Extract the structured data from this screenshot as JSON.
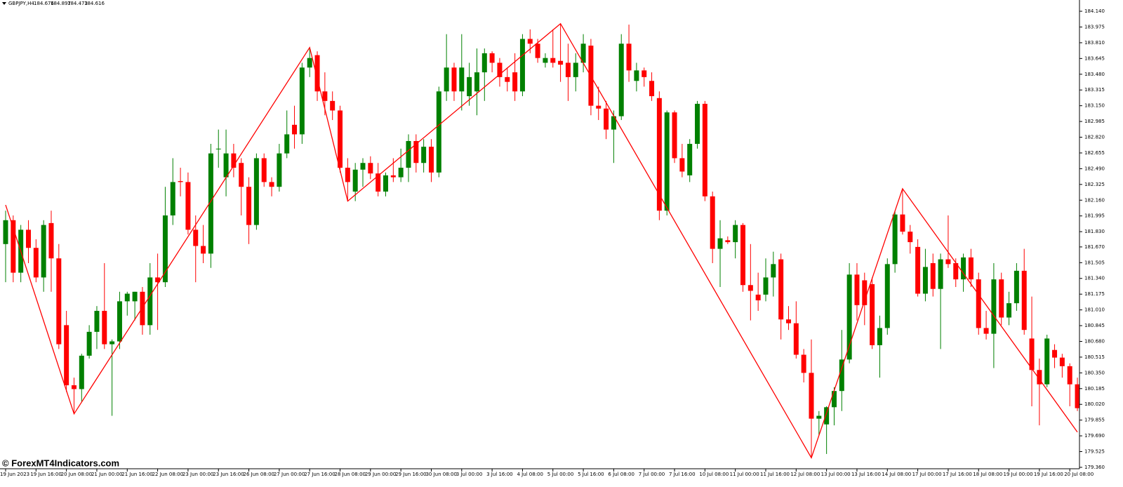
{
  "chart_data": {
    "type": "candlestick",
    "symbol": "GBPJPY,H4",
    "header_values": [
      184.676,
      184.897,
      184.473,
      184.616
    ],
    "watermark": "© ForexMT4Indicators.com",
    "up_color": "#008000",
    "down_color": "#ff0000",
    "categories": [
      "19 Jun 2023",
      null,
      null,
      null,
      "19 Jun 16:00",
      null,
      null,
      null,
      "20 Jun 08:00",
      null,
      null,
      null,
      "21 Jun 00:00",
      null,
      null,
      null,
      "21 Jun 16:00",
      null,
      null,
      null,
      "22 Jun 08:00",
      null,
      null,
      null,
      "23 Jun 00:00",
      null,
      null,
      null,
      "23 Jun 16:00",
      null,
      null,
      null,
      "26 Jun 08:00",
      null,
      null,
      null,
      "27 Jun 00:00",
      null,
      null,
      null,
      "27 Jun 16:00",
      null,
      null,
      null,
      "28 Jun 08:00",
      null,
      null,
      null,
      "29 Jun 00:00",
      null,
      null,
      null,
      "29 Jun 16:00",
      null,
      null,
      null,
      "30 Jun 08:00",
      null,
      null,
      null,
      "3 Jul 00:00",
      null,
      null,
      null,
      "3 Jul 16:00",
      null,
      null,
      null,
      "4 Jul 08:00",
      null,
      null,
      null,
      "5 Jul 00:00",
      null,
      null,
      null,
      "5 Jul 16:00",
      null,
      null,
      null,
      "6 Jul 08:00",
      null,
      null,
      null,
      "7 Jul 00:00",
      null,
      null,
      null,
      "7 Jul 16:00",
      null,
      null,
      null,
      "10 Jul 08:00",
      null,
      null,
      null,
      "11 Jul 00:00",
      null,
      null,
      null,
      "11 Jul 16:00",
      null,
      null,
      null,
      "12 Jul 08:00",
      null,
      null,
      null,
      "13 Jul 00:00",
      null,
      null,
      null,
      "13 Jul 16:00",
      null,
      null,
      null,
      "14 Jul 08:00",
      null,
      null,
      null,
      "17 Jul 00:00",
      null,
      null,
      null,
      "17 Jul 16:00",
      null,
      null,
      null,
      "18 Jul 08:00",
      null,
      null,
      null,
      "19 Jul 00:00",
      null,
      null,
      null,
      "19 Jul 16:00",
      null,
      null,
      null,
      "20 Jul 08:00",
      null
    ],
    "open": [
      181.7,
      181.95,
      181.4,
      181.85,
      181.66,
      181.35,
      181.92,
      181.55,
      180.85,
      180.22,
      180.18,
      180.53,
      180.78,
      181.0,
      180.65,
      180.68,
      181.1,
      181.1,
      181.2,
      180.85,
      181.35,
      181.3,
      182.0,
      182.36,
      182.35,
      181.85,
      181.68,
      181.6,
      182.7,
      182.4,
      182.65,
      182.55,
      182.3,
      181.9,
      182.6,
      182.35,
      182.3,
      182.65,
      182.95,
      182.85,
      183.55,
      183.68,
      183.3,
      183.2,
      183.1,
      182.5,
      182.25,
      182.48,
      182.55,
      182.44,
      182.25,
      182.42,
      182.4,
      182.5,
      182.78,
      182.55,
      182.72,
      182.45,
      183.3,
      183.55,
      183.3,
      183.25,
      183.3,
      183.5,
      183.7,
      183.6,
      183.45,
      183.5,
      183.3,
      183.85,
      183.8,
      183.6,
      183.65,
      183.62,
      183.6,
      183.45,
      183.6,
      183.78,
      183.15,
      183.12,
      182.9,
      183.04,
      183.8,
      183.41,
      183.52,
      183.41,
      183.23,
      182.05,
      183.08,
      182.6,
      182.42,
      182.75,
      183.17,
      182.2,
      181.65,
      181.74,
      181.72,
      181.9,
      181.27,
      181.17,
      181.17,
      181.35,
      181.54,
      180.91,
      180.87,
      180.54,
      180.35,
      179.87,
      179.81,
      179.99,
      180.16,
      180.49,
      181.38,
      181.32,
      181.28,
      180.64,
      180.82,
      181.49,
      182.01,
      181.83,
      181.67,
      181.18,
      181.5,
      181.23,
      181.54,
      181.5,
      181.33,
      181.56,
      181.33,
      180.82,
      180.76,
      181.33,
      180.93,
      181.08,
      181.42,
      180.71,
      180.38,
      180.23,
      180.59,
      180.51,
      180.42,
      180.23
    ],
    "high": [
      182.05,
      182.0,
      181.9,
      181.95,
      181.75,
      181.95,
      182.05,
      181.7,
      181.0,
      180.3,
      180.55,
      180.85,
      181.05,
      181.5,
      180.7,
      181.2,
      181.2,
      181.2,
      181.25,
      181.5,
      181.6,
      182.3,
      182.6,
      182.5,
      182.45,
      182.0,
      181.9,
      182.75,
      182.9,
      182.9,
      182.75,
      182.6,
      182.4,
      182.65,
      182.65,
      182.4,
      182.75,
      183.1,
      183.15,
      183.6,
      183.76,
      183.72,
      183.5,
      183.3,
      183.15,
      182.6,
      182.55,
      182.6,
      182.62,
      182.55,
      182.45,
      182.6,
      182.7,
      182.85,
      182.85,
      182.8,
      182.8,
      183.35,
      183.9,
      183.6,
      183.9,
      183.6,
      183.75,
      183.75,
      183.72,
      183.65,
      183.55,
      183.7,
      183.9,
      183.95,
      183.85,
      183.7,
      183.95,
      184.01,
      183.8,
      183.7,
      183.9,
      183.85,
      183.35,
      183.2,
      183.1,
      183.9,
      184.0,
      183.6,
      183.55,
      183.5,
      183.3,
      183.1,
      183.1,
      182.75,
      182.8,
      183.2,
      183.2,
      182.25,
      181.95,
      181.78,
      181.95,
      181.92,
      181.7,
      181.4,
      181.55,
      181.62,
      181.6,
      181.05,
      181.1,
      180.6,
      180.7,
      179.95,
      180.0,
      180.2,
      180.8,
      181.5,
      181.5,
      181.4,
      181.35,
      180.95,
      181.55,
      182.05,
      182.28,
      181.9,
      181.75,
      181.65,
      181.6,
      181.6,
      182.0,
      181.55,
      181.6,
      181.65,
      181.4,
      181.0,
      181.5,
      181.4,
      181.2,
      181.5,
      181.65,
      181.15,
      180.5,
      180.75,
      180.65,
      180.55,
      180.45,
      180.3
    ],
    "low": [
      181.3,
      181.3,
      181.3,
      181.5,
      181.3,
      181.2,
      181.2,
      180.6,
      180.15,
      179.92,
      180.05,
      180.5,
      180.6,
      180.6,
      179.9,
      180.6,
      180.95,
      180.9,
      180.75,
      180.75,
      180.8,
      181.25,
      181.9,
      182.2,
      181.8,
      181.3,
      181.5,
      181.45,
      182.5,
      182.2,
      182.4,
      182.0,
      181.7,
      181.85,
      182.3,
      182.2,
      182.25,
      182.6,
      182.7,
      182.75,
      183.45,
      183.2,
      183.05,
      183.0,
      182.45,
      182.15,
      182.15,
      182.3,
      182.38,
      182.2,
      182.2,
      182.35,
      182.35,
      182.35,
      182.45,
      182.45,
      182.35,
      182.4,
      183.2,
      183.2,
      183.1,
      183.15,
      183.05,
      183.2,
      183.5,
      183.35,
      183.3,
      183.2,
      183.25,
      183.7,
      183.6,
      183.55,
      183.55,
      183.4,
      183.2,
      183.3,
      183.5,
      183.05,
      183.0,
      182.8,
      182.55,
      183.0,
      183.4,
      183.3,
      183.35,
      183.2,
      181.95,
      182.0,
      182.55,
      182.4,
      182.35,
      182.7,
      182.15,
      181.5,
      181.25,
      181.7,
      181.55,
      181.2,
      180.9,
      181.0,
      181.1,
      181.15,
      180.7,
      180.8,
      180.5,
      180.25,
      179.46,
      179.7,
      179.5,
      179.8,
      179.95,
      180.45,
      180.9,
      180.85,
      180.6,
      180.3,
      180.75,
      181.4,
      181.8,
      181.6,
      181.15,
      181.1,
      181.15,
      180.6,
      181.45,
      181.25,
      181.2,
      181.25,
      180.75,
      180.7,
      180.4,
      180.85,
      180.85,
      181.0,
      180.75,
      180.0,
      179.8,
      180.2,
      180.4,
      180.3,
      180.0,
      179.95
    ],
    "close": [
      181.95,
      181.4,
      181.85,
      181.66,
      181.35,
      181.9,
      181.55,
      180.65,
      180.22,
      180.18,
      180.53,
      180.78,
      181.0,
      180.65,
      180.68,
      181.1,
      181.18,
      181.2,
      180.85,
      181.35,
      181.3,
      182.0,
      182.35,
      182.35,
      181.85,
      181.68,
      181.6,
      182.65,
      182.7,
      182.65,
      182.5,
      182.3,
      181.9,
      182.6,
      182.35,
      182.3,
      182.65,
      182.85,
      182.85,
      183.55,
      183.65,
      183.3,
      183.2,
      183.1,
      182.5,
      182.35,
      182.48,
      182.55,
      182.44,
      182.25,
      182.42,
      182.4,
      182.5,
      182.78,
      182.55,
      182.72,
      182.45,
      183.3,
      183.55,
      183.3,
      183.55,
      183.45,
      183.5,
      183.7,
      183.6,
      183.45,
      183.4,
      183.3,
      183.85,
      183.8,
      183.65,
      183.65,
      183.6,
      183.58,
      183.45,
      183.6,
      183.8,
      183.15,
      183.12,
      182.9,
      183.04,
      183.8,
      183.52,
      183.52,
      183.45,
      183.25,
      182.05,
      183.08,
      182.6,
      182.46,
      182.75,
      183.17,
      182.2,
      181.65,
      181.76,
      181.72,
      181.9,
      181.27,
      181.21,
      181.11,
      181.35,
      181.49,
      180.91,
      180.87,
      180.54,
      180.35,
      179.87,
      179.9,
      179.99,
      180.16,
      180.49,
      181.38,
      181.06,
      181.06,
      180.64,
      180.82,
      181.49,
      182.01,
      181.83,
      181.72,
      181.18,
      181.46,
      181.23,
      181.54,
      181.49,
      181.33,
      181.56,
      181.33,
      180.82,
      180.76,
      181.33,
      180.93,
      181.08,
      181.42,
      180.8,
      180.38,
      180.23,
      180.71,
      180.51,
      180.42,
      180.23,
      179.98
    ],
    "zigzag": {
      "color": "#ff0000",
      "x": [
        0,
        9,
        40,
        45,
        73,
        106,
        118,
        141
      ],
      "values": [
        182.11,
        179.92,
        183.76,
        182.15,
        184.01,
        179.46,
        182.28,
        179.73
      ]
    },
    "ylim": [
      179.345,
      184.258
    ],
    "yticks": [
      {
        "value": 184.14,
        "label": "184.140"
      },
      183.975,
      {
        "value": 183.81,
        "label": "183.810"
      },
      183.645,
      {
        "value": 183.48,
        "label": "183.480"
      },
      183.315,
      {
        "value": 183.15,
        "label": "183.150"
      },
      182.985,
      {
        "value": 182.82,
        "label": "182.820"
      },
      182.655,
      {
        "value": 182.49,
        "label": "182.490"
      },
      182.325,
      {
        "value": 182.16,
        "label": "182.160"
      },
      181.995,
      {
        "value": 181.83,
        "label": "181.830"
      },
      {
        "value": 181.67,
        "label": "181.670"
      },
      181.505,
      {
        "value": 181.34,
        "label": "181.340"
      },
      181.175,
      {
        "value": 181.01,
        "label": "181.010"
      },
      180.845,
      {
        "value": 180.68,
        "label": "180.680"
      },
      180.515,
      {
        "value": 180.35,
        "label": "180.350"
      },
      180.185,
      {
        "value": 180.02,
        "label": "180.020"
      },
      179.855,
      {
        "value": 179.69,
        "label": "179.690"
      },
      179.525,
      {
        "value": 179.36,
        "label": "179.360"
      }
    ]
  }
}
